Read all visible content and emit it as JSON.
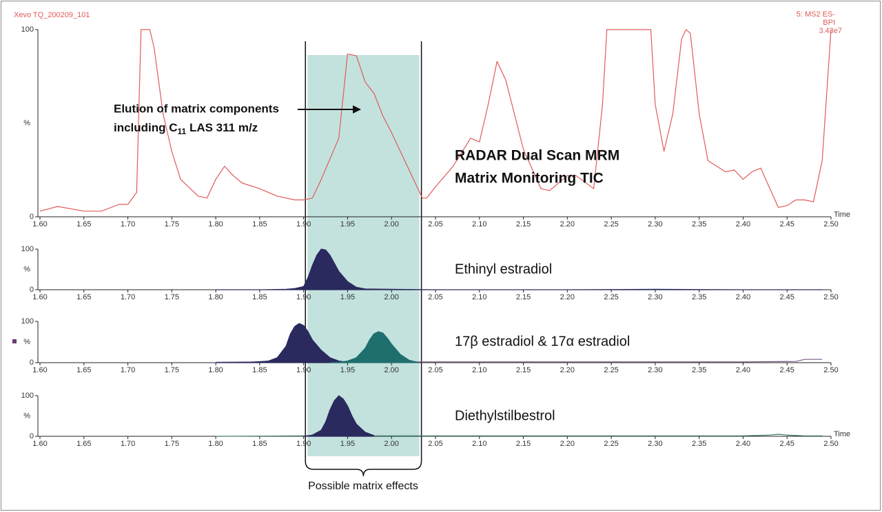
{
  "header": {
    "file": "Xevo TQ_200209_101",
    "function": "5: MS2 ES-",
    "mode": "BPI",
    "intensity": "3.43e7"
  },
  "highlight": {
    "xlim": [
      1.902,
      2.034
    ],
    "label": "Possible matrix effects"
  },
  "chart_data": [
    {
      "type": "line",
      "ylabel": "%",
      "xlabel": "Time",
      "annotations": {
        "elution": [
          "Elution of matrix components",
          "including C",
          "11",
          " LAS 311 m/z"
        ],
        "radar": [
          "RADAR Dual Scan MRM",
          "Matrix Monitoring TIC"
        ]
      },
      "xlim": [
        1.6,
        2.5
      ],
      "ylim": [
        0,
        100
      ],
      "yticks": [
        0,
        100
      ],
      "xticks": [
        {
          "value": 1.6,
          "label": "1.60"
        },
        {
          "value": 1.65,
          "label": "1.65"
        },
        {
          "value": 1.7,
          "label": "1.70"
        },
        {
          "value": 1.75,
          "label": "1.75"
        },
        {
          "value": 1.8,
          "label": "1.80"
        },
        {
          "value": 1.85,
          "label": "1.85"
        },
        {
          "value": 1.9,
          "label": "1.90"
        },
        {
          "value": 1.95,
          "label": "1.95"
        },
        {
          "value": 2.0,
          "label": "2.00"
        },
        {
          "value": 2.05,
          "label": "2.05"
        },
        {
          "value": 2.1,
          "label": "2.10"
        },
        {
          "value": 2.15,
          "label": "2.15"
        },
        {
          "value": 2.2,
          "label": "2.20"
        },
        {
          "value": 2.25,
          "label": "2.25"
        },
        {
          "value": 2.3,
          "label": "2.30"
        },
        {
          "value": 2.35,
          "label": "2.35"
        },
        {
          "value": 2.4,
          "label": "2.40"
        },
        {
          "value": 2.45,
          "label": "2.45"
        },
        {
          "value": 2.5,
          "label": "2.50"
        }
      ],
      "series": [
        {
          "color": "#e05a5a",
          "fill": false,
          "x": [
            1.6,
            1.62,
            1.65,
            1.67,
            1.69,
            1.7,
            1.71,
            1.715,
            1.725,
            1.73,
            1.74,
            1.75,
            1.76,
            1.78,
            1.79,
            1.8,
            1.81,
            1.82,
            1.83,
            1.85,
            1.87,
            1.89,
            1.9,
            1.91,
            1.92,
            1.94,
            1.95,
            1.96,
            1.97,
            1.98,
            1.99,
            2.0,
            2.02,
            2.035,
            2.04,
            2.05,
            2.07,
            2.09,
            2.1,
            2.11,
            2.12,
            2.13,
            2.15,
            2.17,
            2.18,
            2.2,
            2.21,
            2.23,
            2.24,
            2.245,
            2.275,
            2.295,
            2.3,
            2.31,
            2.32,
            2.33,
            2.335,
            2.34,
            2.35,
            2.36,
            2.38,
            2.39,
            2.4,
            2.41,
            2.42,
            2.44,
            2.45,
            2.46,
            2.47,
            2.48,
            2.49,
            2.5
          ],
          "values": [
            3,
            5.5,
            3,
            3,
            6.6,
            6.6,
            13,
            100,
            100,
            90,
            55,
            35,
            20,
            11,
            10,
            20,
            27,
            22,
            18,
            15,
            11,
            9,
            9,
            10,
            20,
            42,
            87,
            86,
            72,
            66,
            54,
            45,
            25,
            10,
            10,
            16,
            27,
            42,
            40,
            60,
            83,
            73,
            36,
            15,
            14,
            22,
            22,
            15,
            60,
            100,
            100,
            100,
            60,
            35,
            55,
            95,
            100,
            98,
            55,
            30,
            24,
            25,
            20,
            24,
            26,
            5,
            6,
            9,
            9,
            8,
            30,
            100
          ]
        }
      ]
    },
    {
      "type": "area",
      "title": "Ethinyl estradiol",
      "xlim": [
        1.6,
        2.5
      ],
      "ylim": [
        0,
        100
      ],
      "yticks": [
        0,
        100
      ],
      "ylabel": "%",
      "xticks": [
        {
          "value": 1.6,
          "label": "1.60"
        },
        {
          "value": 1.65,
          "label": "1.65"
        },
        {
          "value": 1.7,
          "label": "1.70"
        },
        {
          "value": 1.75,
          "label": "1.75"
        },
        {
          "value": 1.8,
          "label": "1.80"
        },
        {
          "value": 1.85,
          "label": "1.85"
        },
        {
          "value": 1.9,
          "label": "1.90"
        },
        {
          "value": 1.95,
          "label": "1.95"
        },
        {
          "value": 2.0,
          "label": "2.00"
        },
        {
          "value": 2.05,
          "label": "2.05"
        },
        {
          "value": 2.1,
          "label": "2.10"
        },
        {
          "value": 2.15,
          "label": "2.15"
        },
        {
          "value": 2.2,
          "label": "2.20"
        },
        {
          "value": 2.25,
          "label": "2.25"
        },
        {
          "value": 2.3,
          "label": "2.30"
        },
        {
          "value": 2.35,
          "label": "2.35"
        },
        {
          "value": 2.4,
          "label": "2.40"
        },
        {
          "value": 2.45,
          "label": "2.45"
        },
        {
          "value": 2.5,
          "label": "2.50"
        }
      ],
      "series": [
        {
          "color": "#2a2a5e",
          "fill": true,
          "x": [
            1.8,
            1.85,
            1.88,
            1.89,
            1.9,
            1.905,
            1.91,
            1.915,
            1.92,
            1.925,
            1.93,
            1.935,
            1.94,
            1.95,
            1.96,
            1.97,
            2.0,
            2.05,
            2.1,
            2.2,
            2.3,
            2.4,
            2.49
          ],
          "values": [
            0,
            0,
            1,
            3,
            8,
            30,
            60,
            85,
            100,
            98,
            85,
            65,
            45,
            20,
            6,
            2,
            1,
            0,
            0,
            0,
            1,
            0,
            0
          ]
        }
      ]
    },
    {
      "type": "area",
      "title": "17β estradiol & 17α estradiol",
      "xlim": [
        1.6,
        2.5
      ],
      "ylim": [
        0,
        100
      ],
      "yticks": [
        0,
        100
      ],
      "ylabel": "%",
      "xticks": [
        {
          "value": 1.6,
          "label": "1.60"
        },
        {
          "value": 1.65,
          "label": "1.65"
        },
        {
          "value": 1.7,
          "label": "1.70"
        },
        {
          "value": 1.75,
          "label": "1.75"
        },
        {
          "value": 1.8,
          "label": "1.80"
        },
        {
          "value": 1.85,
          "label": "1.85"
        },
        {
          "value": 1.9,
          "label": "1.90"
        },
        {
          "value": 1.95,
          "label": "1.95"
        },
        {
          "value": 2.0,
          "label": "2.00"
        },
        {
          "value": 2.05,
          "label": "2.05"
        },
        {
          "value": 2.1,
          "label": "2.10"
        },
        {
          "value": 2.15,
          "label": "2.15"
        },
        {
          "value": 2.2,
          "label": "2.20"
        },
        {
          "value": 2.25,
          "label": "2.25"
        },
        {
          "value": 2.3,
          "label": "2.30"
        },
        {
          "value": 2.35,
          "label": "2.35"
        },
        {
          "value": 2.4,
          "label": "2.40"
        },
        {
          "value": 2.45,
          "label": "2.45"
        },
        {
          "value": 2.5,
          "label": "2.50"
        }
      ],
      "series": [
        {
          "color": "#7a5a8a",
          "fill": false,
          "x": [
            1.8,
            1.85,
            1.9,
            2.0,
            2.1,
            2.2,
            2.3,
            2.4,
            2.46,
            2.47,
            2.49
          ],
          "values": [
            1,
            2,
            2,
            2,
            2,
            2,
            2,
            2,
            3,
            8,
            8
          ]
        },
        {
          "color": "#2a2a5e",
          "fill": true,
          "x": [
            1.8,
            1.84,
            1.86,
            1.87,
            1.88,
            1.885,
            1.89,
            1.895,
            1.9,
            1.905,
            1.91,
            1.92,
            1.93,
            1.94,
            1.95
          ],
          "values": [
            0,
            1,
            4,
            12,
            40,
            70,
            88,
            95,
            90,
            75,
            55,
            30,
            12,
            4,
            1
          ]
        },
        {
          "color": "#1f6f6e",
          "fill": true,
          "x": [
            1.93,
            1.94,
            1.95,
            1.96,
            1.97,
            1.975,
            1.98,
            1.985,
            1.99,
            1.995,
            2.0,
            2.01,
            2.02,
            2.03
          ],
          "values": [
            0,
            1,
            4,
            12,
            35,
            55,
            70,
            75,
            72,
            60,
            45,
            20,
            6,
            1
          ]
        }
      ]
    },
    {
      "type": "area",
      "title": "Diethylstilbestrol",
      "xlabel": "Time",
      "xlim": [
        1.6,
        2.5
      ],
      "ylim": [
        0,
        100
      ],
      "yticks": [
        0,
        100
      ],
      "ylabel": "%",
      "xticks": [
        {
          "value": 1.6,
          "label": "1.60"
        },
        {
          "value": 1.65,
          "label": "1.65"
        },
        {
          "value": 1.7,
          "label": "1.70"
        },
        {
          "value": 1.75,
          "label": "1.75"
        },
        {
          "value": 1.8,
          "label": "1.80"
        },
        {
          "value": 1.85,
          "label": "1.85"
        },
        {
          "value": 1.9,
          "label": "1.90"
        },
        {
          "value": 1.95,
          "label": "1.95"
        },
        {
          "value": 2.0,
          "label": "2.00"
        },
        {
          "value": 2.05,
          "label": "2.05"
        },
        {
          "value": 2.1,
          "label": "2.10"
        },
        {
          "value": 2.15,
          "label": "2.15"
        },
        {
          "value": 2.2,
          "label": "2.20"
        },
        {
          "value": 2.25,
          "label": "2.25"
        },
        {
          "value": 2.3,
          "label": "2.30"
        },
        {
          "value": 2.35,
          "label": "2.35"
        },
        {
          "value": 2.4,
          "label": "2.40"
        },
        {
          "value": 2.45,
          "label": "2.45"
        },
        {
          "value": 2.5,
          "label": "2.50"
        }
      ],
      "series": [
        {
          "color": "#3a7a6a",
          "fill": false,
          "x": [
            1.8,
            1.9,
            2.0,
            2.2,
            2.4,
            2.43,
            2.44,
            2.45,
            2.47,
            2.49
          ],
          "values": [
            0,
            1,
            1,
            1,
            1,
            3,
            5,
            3,
            1,
            1
          ]
        },
        {
          "color": "#2a2a5e",
          "fill": true,
          "x": [
            1.9,
            1.91,
            1.92,
            1.925,
            1.93,
            1.935,
            1.94,
            1.945,
            1.95,
            1.955,
            1.96,
            1.97,
            1.98
          ],
          "values": [
            0,
            3,
            15,
            35,
            65,
            88,
            100,
            92,
            75,
            50,
            30,
            10,
            2
          ]
        }
      ]
    }
  ]
}
